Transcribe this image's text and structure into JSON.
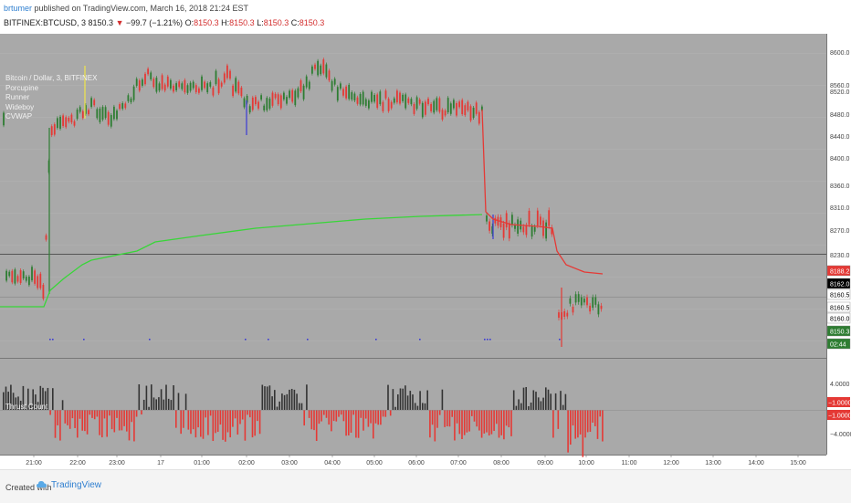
{
  "header": {
    "author": "brtumer",
    "published_text": "published on TradingView.com, March 16, 2018 21:24 EST",
    "symbol": "BITFINEX:BTCUSD, 3",
    "last": "8150.3",
    "change": "−99.7 (−1.21%)",
    "o_label": "O:",
    "o_value": "8150.3",
    "h_label": "H:",
    "h_value": "8150.3",
    "l_label": "L:",
    "l_value": "8150.3",
    "c_label": "C:",
    "c_value": "8150.3"
  },
  "legend": {
    "title": "Bitcoin / Dollar, 3, BITFINEX",
    "items": [
      "Porcupine",
      "Runner",
      "Wideboy",
      "CVWAP"
    ]
  },
  "oscillator": {
    "title": "Thrust Count"
  },
  "colors": {
    "panel_bg": "#a9a9a9",
    "up": "#2e7d32",
    "down": "#e53935",
    "cvwap": "#38d638",
    "thrust_up": "#333333",
    "thrust_down": "#e53935"
  },
  "price_axis": {
    "ticks": [
      "8600.0",
      "8560.0",
      "8520.0",
      "8480.0",
      "8440.0",
      "8400.0",
      "8360.0",
      "8310.0",
      "8270.0",
      "8230.0"
    ],
    "badges": [
      {
        "label": "8188.2",
        "bg": "#e53935",
        "fg": "#ffffff"
      },
      {
        "label": "8162.0",
        "bg": "#000000",
        "fg": "#ffffff"
      },
      {
        "label": "8160.5",
        "bg": "#ffffff",
        "fg": "#000000"
      },
      {
        "label": "8160.5",
        "bg": "#ffffff",
        "fg": "#000000"
      },
      {
        "label": "8160.0",
        "bg": "#ffffff",
        "fg": "#000000"
      },
      {
        "label": "8150.3",
        "bg": "#2e7d32",
        "fg": "#ffffff"
      },
      {
        "label": "02:44",
        "bg": "#2e7d32",
        "fg": "#ffffff"
      }
    ]
  },
  "osc_axis": {
    "ticks": [
      "4.0000",
      "−4.0000"
    ],
    "badges": [
      {
        "label": "−1.0000",
        "bg": "#e53935",
        "fg": "#ffffff"
      },
      {
        "label": "−1.0000",
        "bg": "#e53935",
        "fg": "#ffffff"
      }
    ]
  },
  "time_axis": {
    "labels": [
      "21:00",
      "22:00",
      "23:00",
      "17",
      "01:00",
      "02:00",
      "03:00",
      "04:00",
      "05:00",
      "06:00",
      "07:00",
      "08:00",
      "09:00",
      "10:00",
      "11:00",
      "12:00",
      "13:00",
      "14:00",
      "15:00"
    ]
  },
  "chart_data": {
    "type": "candlestick",
    "price_range": [
      8130,
      8620
    ],
    "cvwap_start": "8180",
    "cvwap_end": "8310",
    "horizontal_line": "8222",
    "last_price_line": "8160"
  },
  "footer": {
    "created_with": "Created with",
    "brand": "TradingView"
  }
}
